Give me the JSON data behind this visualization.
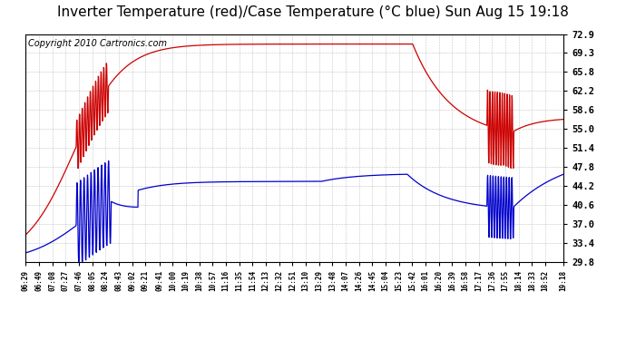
{
  "title": "Inverter Temperature (red)/Case Temperature (°C blue) Sun Aug 15 19:18",
  "copyright": "Copyright 2010 Cartronics.com",
  "yticks": [
    29.8,
    33.4,
    37.0,
    40.6,
    44.2,
    47.8,
    51.4,
    55.0,
    58.6,
    62.2,
    65.8,
    69.3,
    72.9
  ],
  "ylim": [
    29.8,
    72.9
  ],
  "xtick_labels": [
    "06:29",
    "06:49",
    "07:08",
    "07:27",
    "07:46",
    "08:05",
    "08:24",
    "08:43",
    "09:02",
    "09:21",
    "09:41",
    "10:00",
    "10:19",
    "10:38",
    "10:57",
    "11:16",
    "11:35",
    "11:54",
    "12:13",
    "12:32",
    "12:51",
    "13:10",
    "13:29",
    "13:48",
    "14:07",
    "14:26",
    "14:45",
    "15:04",
    "15:23",
    "15:42",
    "16:01",
    "16:20",
    "16:39",
    "16:58",
    "17:17",
    "17:36",
    "17:55",
    "18:14",
    "18:33",
    "18:52",
    "19:18"
  ],
  "background_color": "#ffffff",
  "plot_bg_color": "#ffffff",
  "grid_color": "#aaaaaa",
  "red_color": "#cc0000",
  "blue_color": "#0000cc",
  "title_fontsize": 11,
  "copyright_fontsize": 7
}
